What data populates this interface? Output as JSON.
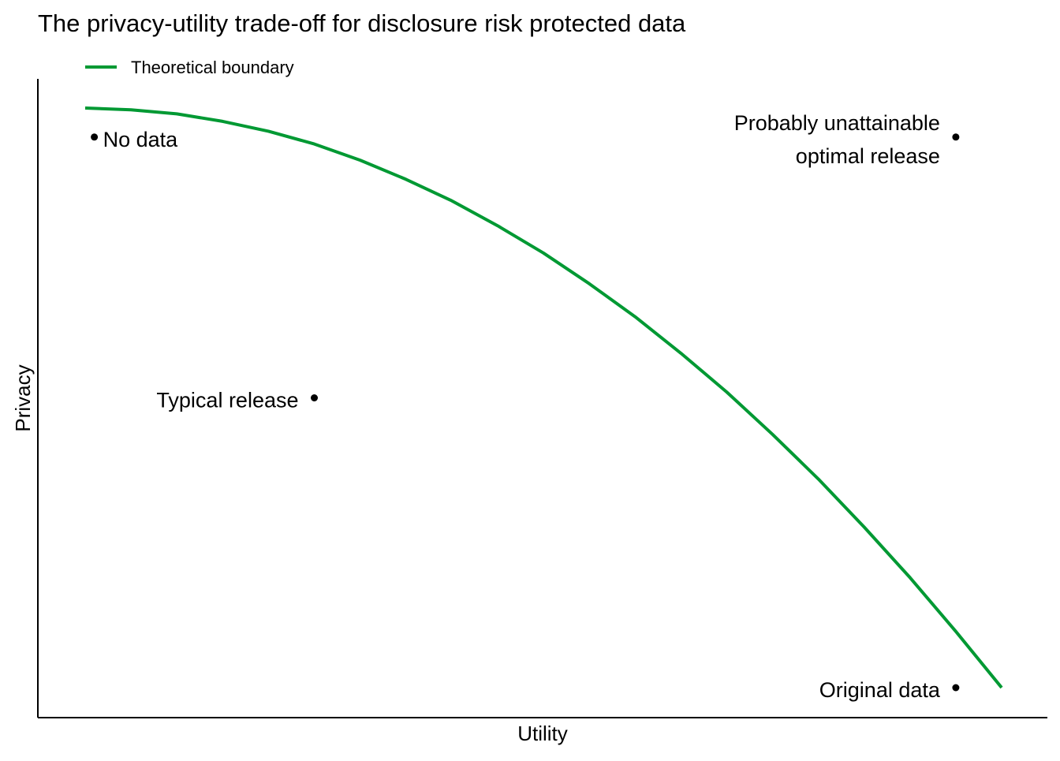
{
  "chart_data": {
    "type": "line",
    "title": "The privacy-utility trade-off for disclosure risk protected data",
    "xlabel": "Utility",
    "ylabel": "Privacy",
    "xlim": [
      0,
      1
    ],
    "ylim": [
      0,
      1
    ],
    "grid": false,
    "show_tick_labels": false,
    "legend": {
      "position": "top-left",
      "entries": [
        "Theoretical boundary"
      ]
    },
    "series": [
      {
        "name": "Theoretical boundary",
        "color": "#009933",
        "x": [
          0.0,
          0.05,
          0.1,
          0.15,
          0.2,
          0.25,
          0.3,
          0.35,
          0.4,
          0.45,
          0.5,
          0.55,
          0.6,
          0.65,
          0.7,
          0.75,
          0.8,
          0.85,
          0.9,
          0.95,
          1.0
        ],
        "y": [
          1.0,
          0.997,
          0.99,
          0.977,
          0.96,
          0.938,
          0.91,
          0.877,
          0.84,
          0.797,
          0.75,
          0.697,
          0.64,
          0.577,
          0.51,
          0.437,
          0.36,
          0.277,
          0.19,
          0.097,
          0.0
        ]
      }
    ],
    "points": [
      {
        "label": "No data",
        "x": 0.01,
        "y": 0.95,
        "label_side": "right"
      },
      {
        "label": "Probably unattainable\noptimal release",
        "x": 0.95,
        "y": 0.95,
        "label_side": "left"
      },
      {
        "label": "Typical release",
        "x": 0.25,
        "y": 0.5,
        "label_side": "left"
      },
      {
        "label": "Original data",
        "x": 0.95,
        "y": 0.0,
        "label_side": "left"
      }
    ]
  }
}
